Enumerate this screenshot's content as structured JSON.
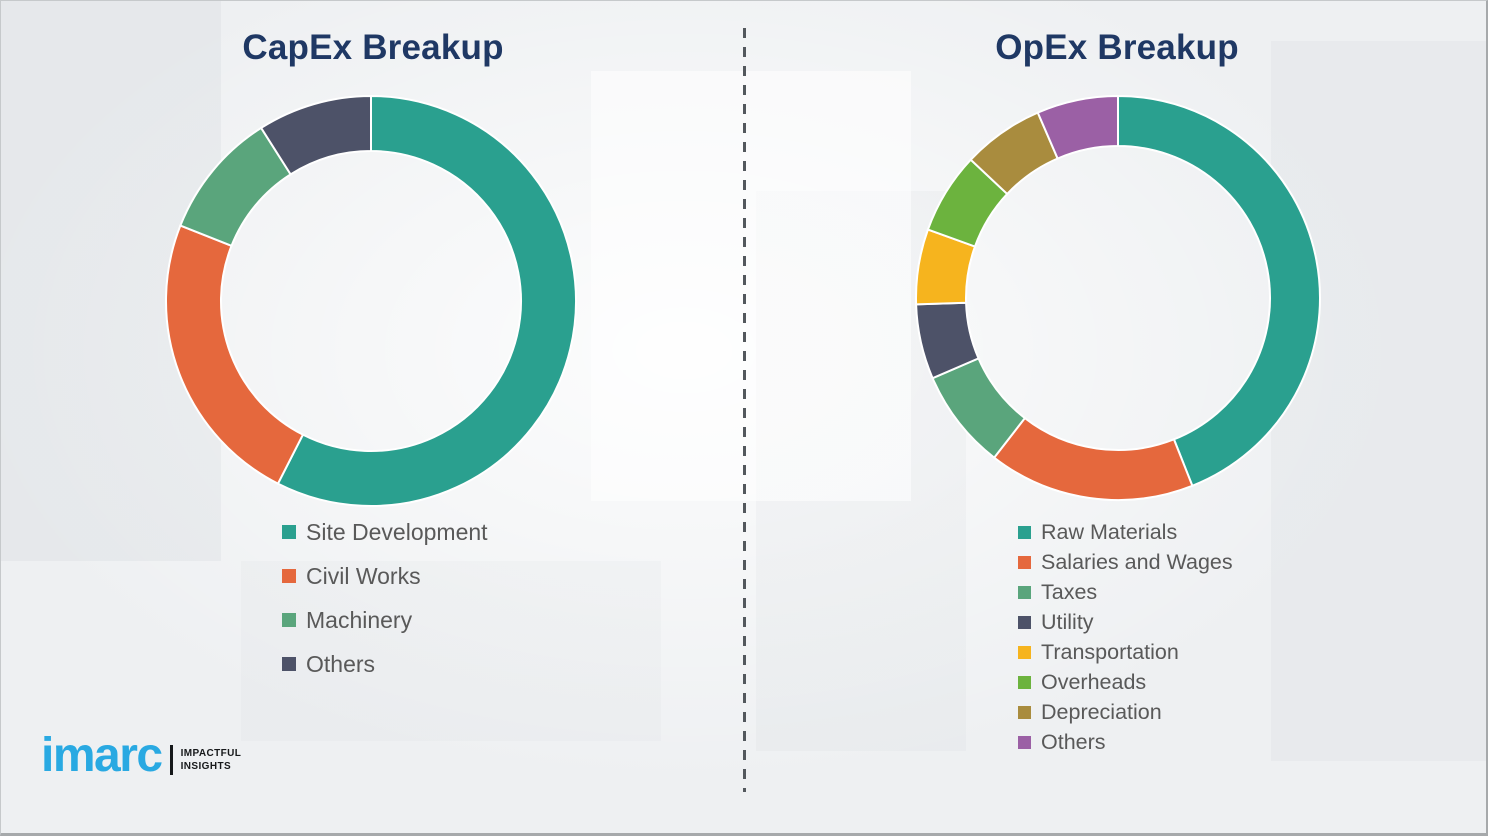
{
  "logo": {
    "brand": "imarc",
    "tagline_line1": "IMPACTFUL",
    "tagline_line2": "INSIGHTS",
    "brand_color": "#29a9e2"
  },
  "theme": {
    "background": "#eef0f2",
    "title_color": "#1f3864",
    "legend_text_color": "#595959",
    "divider_color": "#53585d",
    "segment_separator_color": "#ffffff"
  },
  "chart_data": [
    {
      "id": "capex",
      "type": "pie",
      "subtype": "donut",
      "title": "CapEx Breakup",
      "labels": [
        "Site Development",
        "Civil Works",
        "Machinery",
        "Others"
      ],
      "values": [
        57.5,
        23.5,
        10,
        9
      ],
      "colors": [
        "#2aa08f",
        "#e5683d",
        "#5aa57c",
        "#4d5268"
      ],
      "values_unit": "percent-estimated-from-arc-angles",
      "start_angle_deg": 0,
      "direction": "clockwise",
      "hole_ratio": 0.73,
      "legend_position": "bottom"
    },
    {
      "id": "opex",
      "type": "pie",
      "subtype": "donut",
      "title": "OpEx Breakup",
      "labels": [
        "Raw Materials",
        "Salaries and Wages",
        "Taxes",
        "Utility",
        "Transportation",
        "Overheads",
        "Depreciation",
        "Others"
      ],
      "values": [
        44,
        16.5,
        8,
        6,
        6,
        6.5,
        6.5,
        6.5
      ],
      "colors": [
        "#2aa08f",
        "#e5683d",
        "#5aa57c",
        "#4d5268",
        "#f6b41e",
        "#6cb33e",
        "#a98c3e",
        "#9b60a5"
      ],
      "values_unit": "percent-estimated-from-arc-angles",
      "start_angle_deg": 0,
      "direction": "clockwise",
      "hole_ratio": 0.75,
      "legend_position": "bottom"
    }
  ]
}
